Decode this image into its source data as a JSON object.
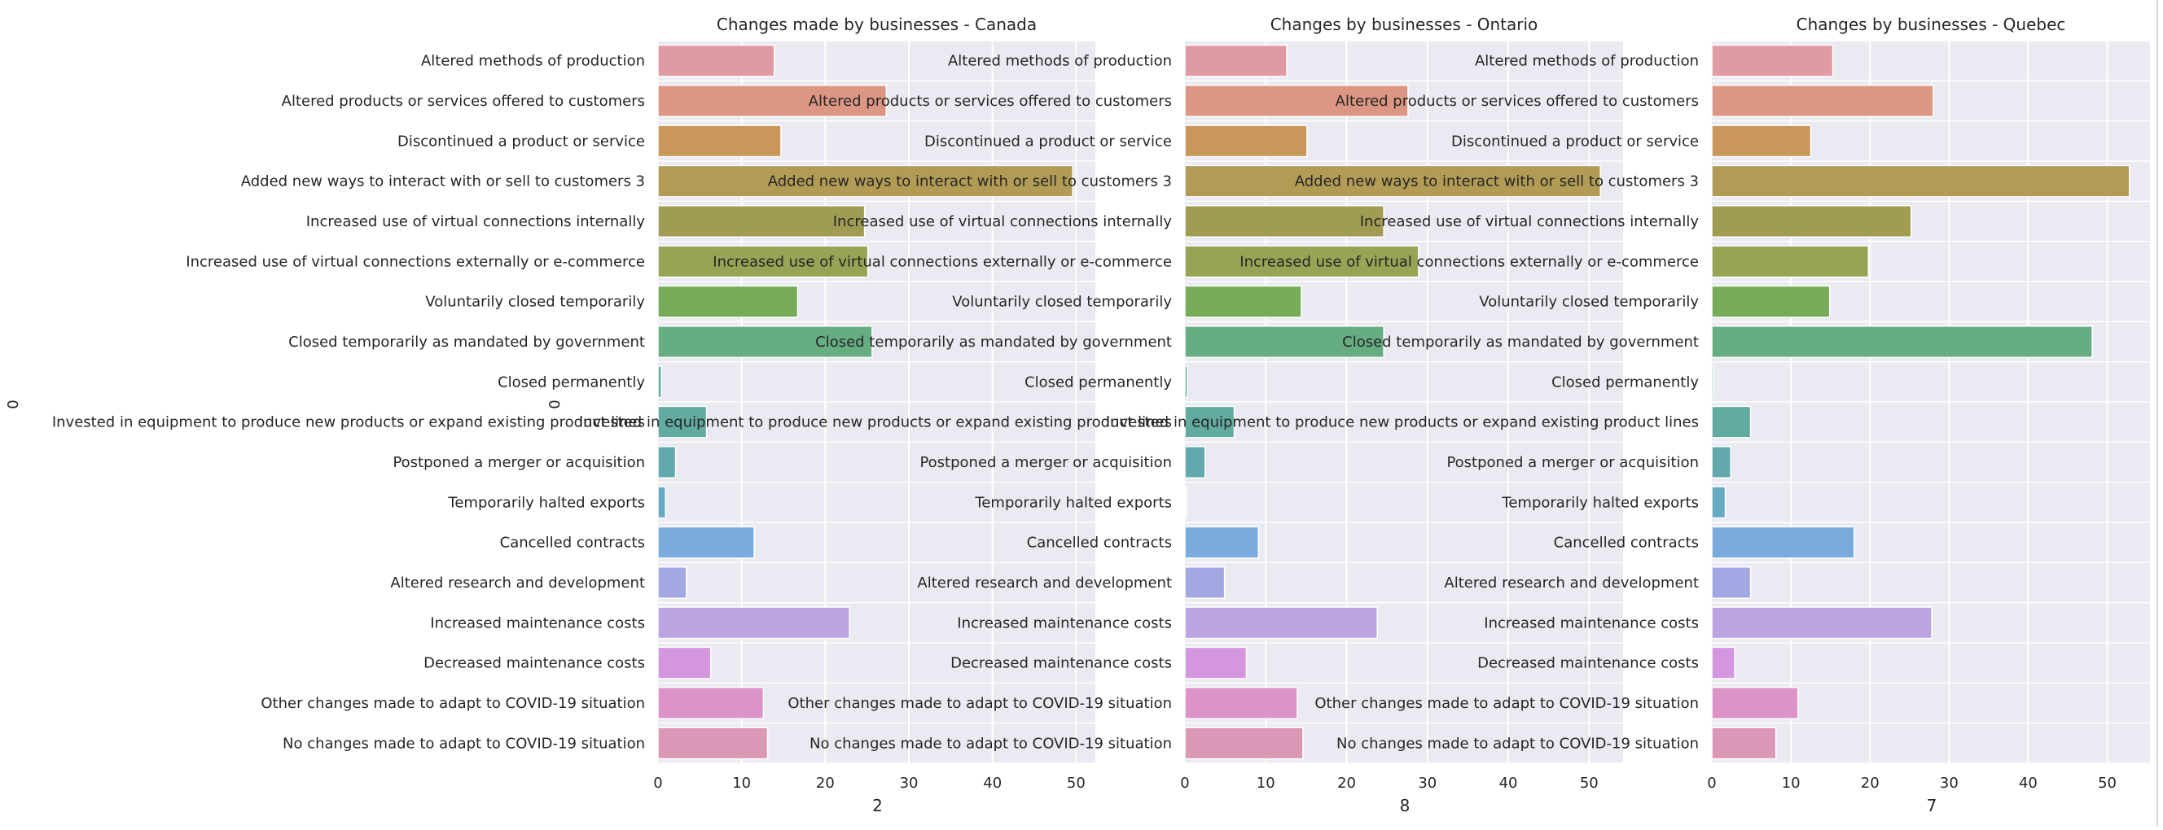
{
  "chart_data": [
    {
      "type": "bar",
      "orientation": "horizontal",
      "title": "Changes made by businesses - Canada",
      "xlabel": "2",
      "ylabel": "0",
      "xlim": [
        0,
        52.3
      ],
      "xticks": [
        "0",
        "10",
        "20",
        "30",
        "40",
        "50"
      ],
      "grid": true,
      "categories": [
        "Altered methods of production",
        "Altered products or services offered to customers",
        "Discontinued a product or service",
        "Added new ways to interact with or sell to customers 3",
        "Increased use of virtual connections internally",
        "Increased use of virtual connections externally or e-commerce",
        "Voluntarily closed temporarily",
        "Closed temporarily as mandated by government",
        "Closed permanently",
        "Invested in equipment to produce new products or expand existing product lines",
        "Postponed a merger or acquisition",
        "Temporarily halted exports",
        "Cancelled contracts",
        "Altered research and development",
        "Increased maintenance costs",
        "Decreased maintenance costs",
        "Other changes made to adapt to COVID-19 situation",
        "No changes made to adapt to COVID-19 situation"
      ],
      "values": [
        13.9,
        27.3,
        14.7,
        49.6,
        24.7,
        25.1,
        16.7,
        25.6,
        0.4,
        5.8,
        2.1,
        0.9,
        11.5,
        3.4,
        22.9,
        6.3,
        12.6,
        13.1
      ]
    },
    {
      "type": "bar",
      "orientation": "horizontal",
      "title": "Changes by businesses - Ontario",
      "xlabel": "8",
      "ylabel": "0",
      "xlim": [
        0,
        54.2
      ],
      "xticks": [
        "0",
        "10",
        "20",
        "30",
        "40",
        "50"
      ],
      "grid": true,
      "categories": [
        "Altered methods of production",
        "Altered products or services offered to customers",
        "Discontinued a product or service",
        "Added new ways to interact with or sell to customers 3",
        "Increased use of virtual connections internally",
        "Increased use of virtual connections externally or e-commerce",
        "Voluntarily closed temporarily",
        "Closed temporarily as mandated by government",
        "Closed permanently",
        "Invested in equipment to produce new products or expand existing product lines",
        "Postponed a merger or acquisition",
        "Temporarily halted exports",
        "Cancelled contracts",
        "Altered research and development",
        "Increased maintenance costs",
        "Decreased maintenance costs",
        "Other changes made to adapt to COVID-19 situation",
        "No changes made to adapt to COVID-19 situation"
      ],
      "values": [
        12.6,
        27.6,
        15.1,
        51.4,
        24.6,
        28.9,
        14.4,
        24.6,
        0.3,
        6.1,
        2.5,
        0.1,
        9.1,
        4.9,
        23.8,
        7.6,
        13.9,
        14.6
      ]
    },
    {
      "type": "bar",
      "orientation": "horizontal",
      "title": "Changes by businesses - Quebec",
      "xlabel": "7",
      "ylabel": "",
      "xlim": [
        0,
        55.4
      ],
      "xticks": [
        "0",
        "10",
        "20",
        "30",
        "40",
        "50"
      ],
      "grid": true,
      "categories": [
        "Altered methods of production",
        "Altered products or services offered to customers",
        "Discontinued a product or service",
        "Added new ways to interact with or sell to customers 3",
        "Increased use of virtual connections internally",
        "Increased use of virtual connections externally or e-commerce",
        "Voluntarily closed temporarily",
        "Closed temporarily as mandated by government",
        "Closed permanently",
        "Invested in equipment to produce new products or expand existing product lines",
        "Postponed a merger or acquisition",
        "Temporarily halted exports",
        "Cancelled contracts",
        "Altered research and development",
        "Increased maintenance costs",
        "Decreased maintenance costs",
        "Other changes made to adapt to COVID-19 situation",
        "No changes made to adapt to COVID-19 situation"
      ],
      "values": [
        15.3,
        28.0,
        12.5,
        52.8,
        25.2,
        19.8,
        14.9,
        48.1,
        0.2,
        4.9,
        2.4,
        1.7,
        18.0,
        4.9,
        27.8,
        2.9,
        10.9,
        8.1
      ]
    }
  ],
  "colors": {
    "background": "#eaeaf2",
    "grid": "#ffffff",
    "text": "#262626",
    "bars": [
      "#df9aa3",
      "#dc9684",
      "#c9975a",
      "#b29b55",
      "#a19c53",
      "#96a555",
      "#76ab57",
      "#67ad82",
      "#62ab98",
      "#63aaa0",
      "#63a8ad",
      "#66a9c2",
      "#79abdc",
      "#a2a8e2",
      "#bca3e2",
      "#d496df",
      "#db93c8",
      "#db97b6"
    ]
  }
}
